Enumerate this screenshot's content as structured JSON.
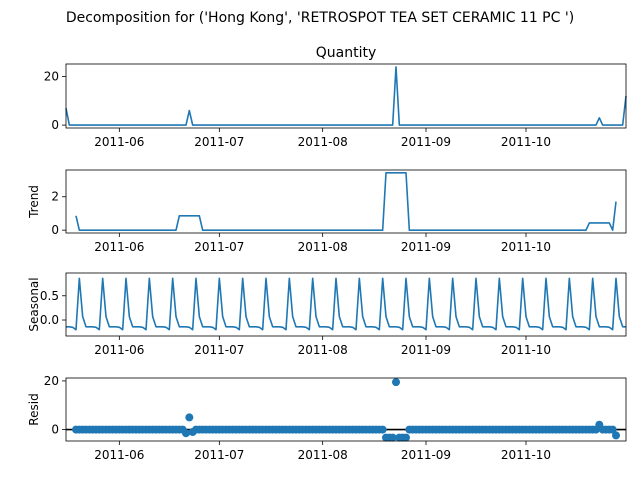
{
  "chart_data": {
    "type": "line",
    "title": "Decomposition for ('Hong Kong', 'RETROSPOT TEA SET CERAMIC 11 PC ')",
    "x_ticks": [
      "2011-06",
      "2011-07",
      "2011-08",
      "2011-09",
      "2011-10"
    ],
    "x_tick_dates": [
      "2011-06-01",
      "2011-07-01",
      "2011-08-01",
      "2011-09-01",
      "2011-10-01"
    ],
    "x_range": [
      "2011-05-16",
      "2011-10-31"
    ],
    "color": "#1f77b4",
    "panels": [
      {
        "name": "observed",
        "title": "Quantity",
        "ylabel": "",
        "style": "line",
        "ylim": [
          -1.2,
          25.2
        ],
        "yticks": [
          0,
          20
        ],
        "series": [
          {
            "x": "2011-05-16",
            "y": 7
          },
          {
            "x": "2011-05-17",
            "y": 0
          },
          {
            "x": "2011-06-21",
            "y": 0
          },
          {
            "x": "2011-06-22",
            "y": 6
          },
          {
            "x": "2011-06-23",
            "y": 0
          },
          {
            "x": "2011-08-22",
            "y": 0
          },
          {
            "x": "2011-08-23",
            "y": 24
          },
          {
            "x": "2011-08-24",
            "y": 0
          },
          {
            "x": "2011-10-22",
            "y": 0
          },
          {
            "x": "2011-10-23",
            "y": 3
          },
          {
            "x": "2011-10-24",
            "y": 0
          },
          {
            "x": "2011-10-30",
            "y": 0
          },
          {
            "x": "2011-10-31",
            "y": 12
          }
        ]
      },
      {
        "name": "trend",
        "title": "",
        "ylabel": "Trend",
        "style": "line",
        "ylim": [
          -0.17,
          3.6
        ],
        "yticks": [
          0,
          2
        ],
        "series": [
          {
            "x": "2011-05-19",
            "y": 0.86
          },
          {
            "x": "2011-05-20",
            "y": 0
          },
          {
            "x": "2011-06-18",
            "y": 0
          },
          {
            "x": "2011-06-19",
            "y": 0.86
          },
          {
            "x": "2011-06-25",
            "y": 0.86
          },
          {
            "x": "2011-06-26",
            "y": 0
          },
          {
            "x": "2011-08-19",
            "y": 0
          },
          {
            "x": "2011-08-20",
            "y": 3.43
          },
          {
            "x": "2011-08-26",
            "y": 3.43
          },
          {
            "x": "2011-08-27",
            "y": 0
          },
          {
            "x": "2011-10-19",
            "y": 0
          },
          {
            "x": "2011-10-20",
            "y": 0.43
          },
          {
            "x": "2011-10-26",
            "y": 0.43
          },
          {
            "x": "2011-10-27",
            "y": 0
          },
          {
            "x": "2011-10-28",
            "y": 1.71
          }
        ]
      },
      {
        "name": "seasonal",
        "title": "",
        "ylabel": "Seasonal",
        "style": "seasonal",
        "ylim": [
          -0.33,
          0.97
        ],
        "yticks": [
          0.0,
          0.5
        ],
        "ytick_labels": [
          "0.0",
          "0.5"
        ],
        "pattern": [
          -0.14,
          -0.14,
          -0.15,
          -0.2,
          0.86,
          0.07,
          -0.14
        ],
        "start": "2011-05-16"
      },
      {
        "name": "resid",
        "title": "",
        "ylabel": "Resid",
        "style": "scatter",
        "ylim": [
          -4.7,
          21.2
        ],
        "yticks": [
          0,
          20
        ],
        "baseline": 0,
        "start": "2011-05-19",
        "end": "2011-10-28",
        "default_value": 0,
        "outliers": [
          {
            "x": "2011-06-22",
            "y": 5
          },
          {
            "x": "2011-06-21",
            "y": -1.5
          },
          {
            "x": "2011-06-23",
            "y": -1
          },
          {
            "x": "2011-08-20",
            "y": -3.3
          },
          {
            "x": "2011-08-21",
            "y": -3.3
          },
          {
            "x": "2011-08-22",
            "y": -3.3
          },
          {
            "x": "2011-08-23",
            "y": 19.5
          },
          {
            "x": "2011-08-24",
            "y": -3.3
          },
          {
            "x": "2011-08-25",
            "y": -3.3
          },
          {
            "x": "2011-08-26",
            "y": -3.3
          },
          {
            "x": "2011-10-23",
            "y": 2.0
          },
          {
            "x": "2011-10-28",
            "y": -2.4
          }
        ]
      }
    ]
  }
}
